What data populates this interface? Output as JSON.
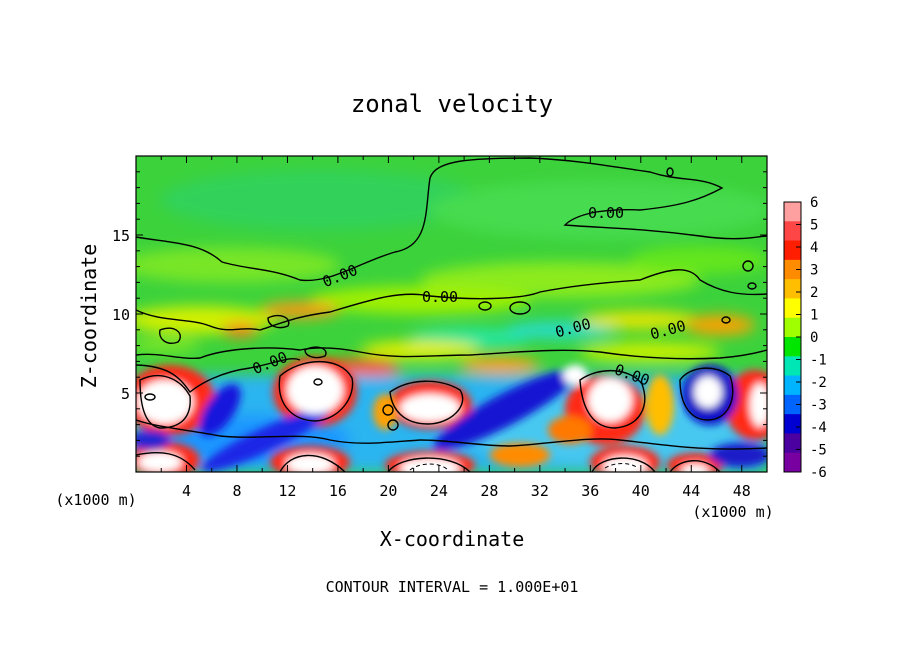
{
  "chart_data": {
    "type": "heatmap",
    "title": "zonal velocity",
    "xlabel": "X-coordinate",
    "ylabel": "Z-coordinate",
    "x_unit": "(x1000 m)",
    "x_unit_right": "(x1000 m)",
    "xlim": [
      0,
      50
    ],
    "ylim": [
      0,
      20
    ],
    "x_ticks": [
      "4",
      "8",
      "12",
      "16",
      "20",
      "24",
      "28",
      "32",
      "36",
      "40",
      "44",
      "48"
    ],
    "y_ticks": [
      "5",
      "10",
      "15"
    ],
    "colorbar": {
      "labels": [
        "6",
        "5",
        "4",
        "3",
        "2",
        "1",
        "0",
        "-1",
        "-2",
        "-3",
        "-4",
        "-5",
        "-6"
      ],
      "range": [
        -6,
        6
      ],
      "colors": [
        "#ffa0a0",
        "#ff4646",
        "#ff1e00",
        "#ff8c00",
        "#ffbe00",
        "#ffff00",
        "#a0ff00",
        "#00e600",
        "#00e6b4",
        "#00b4ff",
        "#0064ff",
        "#0000d2",
        "#4b00a0",
        "#7800a0"
      ]
    },
    "contour_labels": [
      "0.00",
      "0.00",
      "0.00",
      "0.00",
      "0.00",
      "0.00",
      "0.00"
    ],
    "contour_interval_text": "CONTOUR INTERVAL = 1.000E+01",
    "grid": false,
    "legend": "colorbar right"
  }
}
